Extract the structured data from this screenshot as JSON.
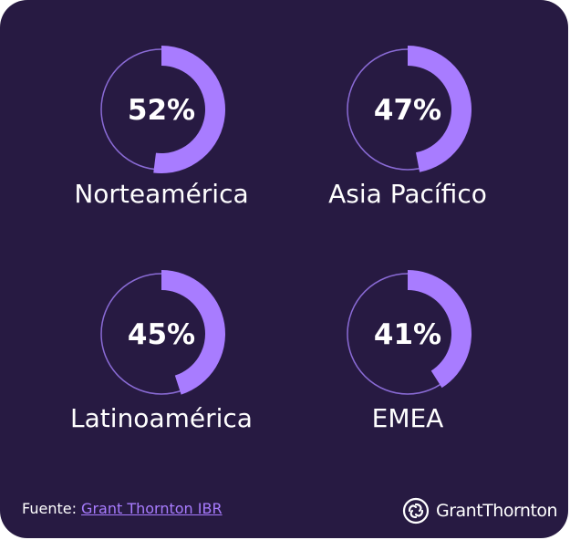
{
  "colors": {
    "background": "#271a42",
    "ring_outline": "#8a6bd6",
    "ring_fill": "#a87cff",
    "text": "#ffffff",
    "link": "#a87cff"
  },
  "chart_data": {
    "type": "pie",
    "variant": "donut-gauges",
    "unit": "%",
    "categories": [
      "Norteamérica",
      "Asia Pacífico",
      "Latinoamérica",
      "EMEA"
    ],
    "values": [
      52,
      47,
      45,
      41
    ],
    "value_labels": [
      "52%",
      "47%",
      "45%",
      "41%"
    ],
    "max": 100,
    "grid": false
  },
  "footer": {
    "source_prefix": "Fuente: ",
    "source_link_text": "Grant Thornton IBR"
  },
  "brand": {
    "logo_icon": "grant-thornton-swirl-icon",
    "name": "GrantThornton"
  }
}
